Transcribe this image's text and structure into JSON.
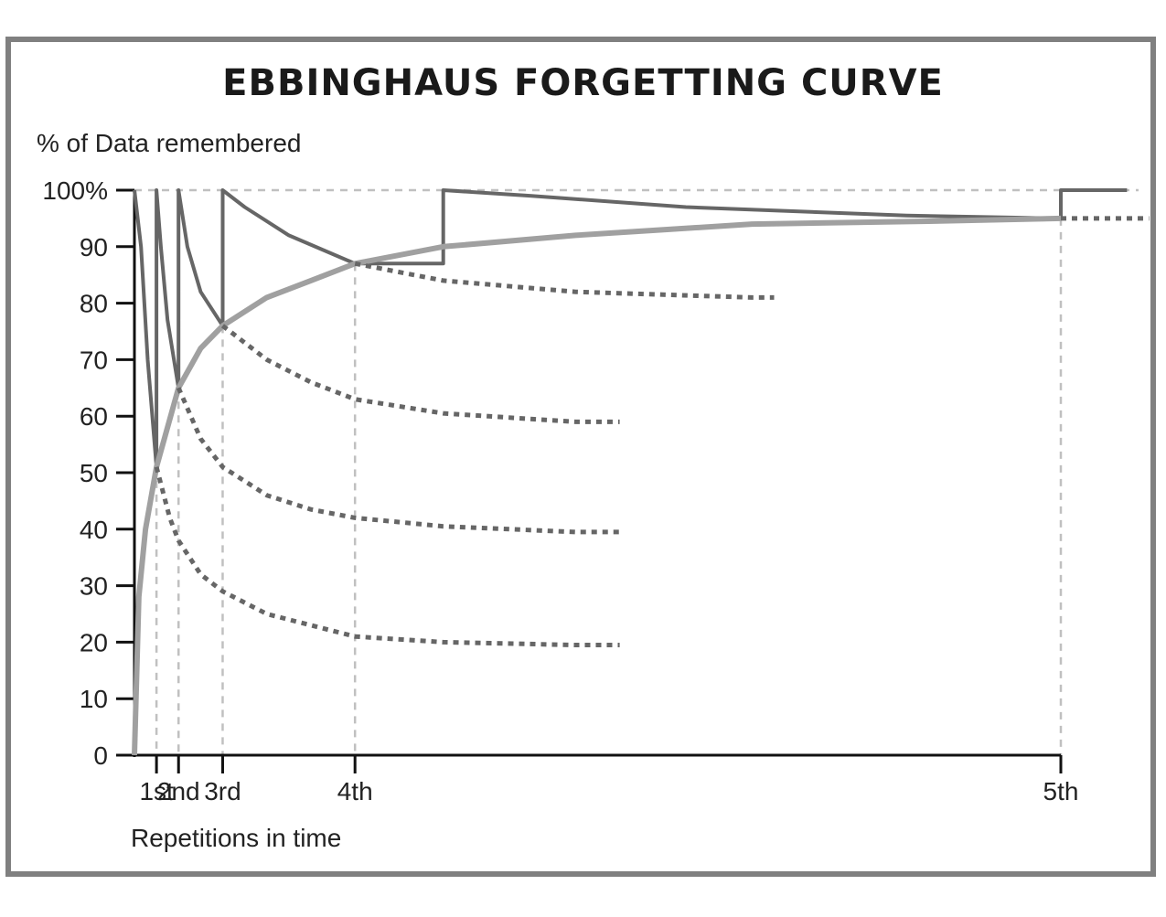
{
  "chart_data": {
    "type": "line",
    "title": "EBBINGHAUS FORGETTING CURVE",
    "ylabel": "% of Data remembered",
    "xlabel": "Repetitions in time",
    "ylim": [
      0,
      100
    ],
    "y_ticks": [
      "0",
      "10",
      "20",
      "30",
      "40",
      "50",
      "60",
      "70",
      "80",
      "90",
      "100%"
    ],
    "x_ticks": [
      "1st",
      "2nd",
      "3rd",
      "4th",
      "5th"
    ],
    "series": [
      {
        "style": "solid-dark",
        "points": [
          [
            0.0,
            100
          ],
          [
            0.3,
            90
          ],
          [
            0.6,
            70
          ],
          [
            1.0,
            51
          ],
          [
            1.0,
            100
          ],
          [
            1.2,
            90
          ],
          [
            1.5,
            77
          ],
          [
            2.0,
            65
          ],
          [
            2.0,
            100
          ],
          [
            2.4,
            90
          ],
          [
            3.0,
            82
          ],
          [
            4.0,
            76
          ],
          [
            4.0,
            100
          ],
          [
            5.0,
            97
          ],
          [
            7.0,
            92
          ],
          [
            10.0,
            87
          ],
          [
            14.0,
            87
          ],
          [
            14.0,
            100
          ],
          [
            18.0,
            99
          ],
          [
            25.0,
            97
          ],
          [
            35.0,
            95.5
          ],
          [
            42.0,
            95
          ],
          [
            42.0,
            100
          ],
          [
            45.0,
            100
          ]
        ]
      },
      {
        "style": "solid-light",
        "points": [
          [
            0.0,
            0
          ],
          [
            0.2,
            28
          ],
          [
            0.5,
            40
          ],
          [
            1.0,
            51
          ],
          [
            2.0,
            65
          ],
          [
            3.0,
            72
          ],
          [
            4.0,
            76
          ],
          [
            6.0,
            81
          ],
          [
            8.0,
            84
          ],
          [
            10.0,
            87
          ],
          [
            14.0,
            90
          ],
          [
            20.0,
            92
          ],
          [
            28.0,
            94
          ],
          [
            36.0,
            94.5
          ],
          [
            42.0,
            95
          ]
        ]
      },
      {
        "style": "dotted",
        "points": [
          [
            1.0,
            51
          ],
          [
            1.6,
            42
          ],
          [
            2.0,
            38
          ],
          [
            3.0,
            32
          ],
          [
            4.0,
            29
          ],
          [
            6.0,
            25
          ],
          [
            8.0,
            23
          ],
          [
            10.0,
            21
          ],
          [
            14.0,
            20
          ],
          [
            20.0,
            19.5
          ],
          [
            22.0,
            19.5
          ]
        ]
      },
      {
        "style": "dotted",
        "points": [
          [
            2.0,
            65
          ],
          [
            3.0,
            56
          ],
          [
            4.0,
            51
          ],
          [
            6.0,
            46
          ],
          [
            8.0,
            43.5
          ],
          [
            10.0,
            42
          ],
          [
            14.0,
            40.5
          ],
          [
            20.0,
            39.5
          ],
          [
            22.0,
            39.5
          ]
        ]
      },
      {
        "style": "dotted",
        "points": [
          [
            4.0,
            76
          ],
          [
            6.0,
            70
          ],
          [
            8.0,
            66
          ],
          [
            10.0,
            63
          ],
          [
            14.0,
            60.5
          ],
          [
            20.0,
            59
          ],
          [
            22.0,
            59
          ]
        ]
      },
      {
        "style": "dotted",
        "points": [
          [
            10.0,
            87
          ],
          [
            14.0,
            84
          ],
          [
            20.0,
            82
          ],
          [
            28.0,
            81
          ],
          [
            29.0,
            81
          ]
        ]
      },
      {
        "style": "dotted",
        "points": [
          [
            42.0,
            95
          ],
          [
            46.0,
            95
          ]
        ]
      }
    ],
    "grid": false,
    "colors": {
      "solid_dark": "#666666",
      "solid_light": "#a0a0a0",
      "dotted": "#666666",
      "guide": "#c0c0c0",
      "axis": "#111111",
      "frame": "#808080"
    }
  }
}
